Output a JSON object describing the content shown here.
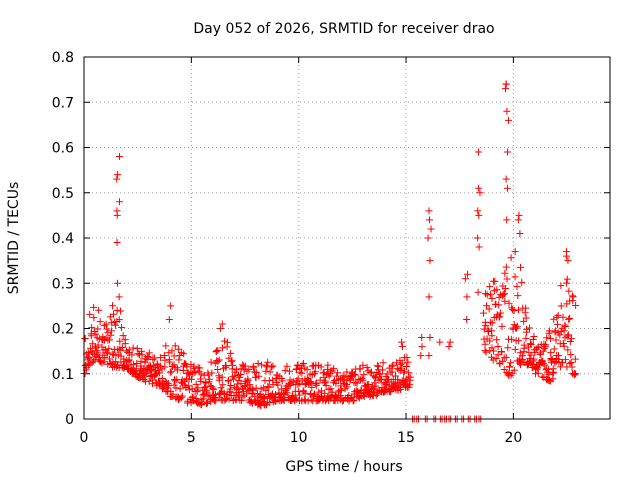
{
  "chart_data": {
    "type": "scatter",
    "title": "Day 052 of 2026, SRMTID for receiver drao",
    "xlabel": "GPS time / hours",
    "ylabel": "SRMTID / TECUs",
    "xlim": [
      0,
      24.5
    ],
    "ylim": [
      0,
      0.8
    ],
    "x_ticks": [
      0,
      5,
      10,
      15,
      20
    ],
    "x_tick_labels": [
      "0",
      "5",
      "10",
      "15",
      "20"
    ],
    "y_ticks": [
      0,
      0.1,
      0.2,
      0.3,
      0.4,
      0.5,
      0.6,
      0.7,
      0.8
    ],
    "y_tick_labels": [
      "0",
      "0.1",
      "0.2",
      "0.3",
      "0.4",
      "0.5",
      "0.6",
      "0.7",
      "0.8"
    ],
    "grid": true,
    "marker": "+",
    "series": [
      {
        "name": "SRMTID",
        "color": "#ff0000",
        "envelope": {
          "x": [
            0.0,
            0.5,
            1.0,
            1.5,
            2.0,
            2.5,
            3.0,
            3.5,
            4.0,
            4.5,
            5.0,
            5.5,
            6.0,
            6.5,
            7.0,
            7.5,
            8.0,
            8.5,
            9.0,
            9.5,
            10.0,
            10.5,
            11.0,
            11.5,
            12.0,
            12.5,
            13.0,
            13.5,
            14.0,
            14.5,
            15.0,
            15.2
          ],
          "lo": [
            0.1,
            0.13,
            0.12,
            0.11,
            0.11,
            0.09,
            0.08,
            0.07,
            0.05,
            0.04,
            0.03,
            0.03,
            0.04,
            0.04,
            0.04,
            0.04,
            0.03,
            0.03,
            0.04,
            0.04,
            0.04,
            0.04,
            0.04,
            0.04,
            0.04,
            0.04,
            0.05,
            0.05,
            0.06,
            0.06,
            0.07,
            0.07
          ],
          "hi": [
            0.23,
            0.28,
            0.21,
            0.29,
            0.17,
            0.16,
            0.15,
            0.14,
            0.18,
            0.16,
            0.12,
            0.11,
            0.13,
            0.2,
            0.12,
            0.12,
            0.13,
            0.13,
            0.12,
            0.12,
            0.12,
            0.13,
            0.12,
            0.12,
            0.1,
            0.11,
            0.12,
            0.12,
            0.13,
            0.13,
            0.14,
            0.13
          ]
        },
        "envelope2": {
          "x": [
            18.6,
            19.0,
            19.4,
            19.8,
            20.2,
            20.6,
            21.0,
            21.4,
            21.8,
            22.2,
            22.6,
            22.9
          ],
          "lo": [
            0.15,
            0.13,
            0.12,
            0.09,
            0.12,
            0.12,
            0.1,
            0.09,
            0.08,
            0.12,
            0.11,
            0.09
          ],
          "hi": [
            0.26,
            0.33,
            0.3,
            0.38,
            0.44,
            0.22,
            0.18,
            0.17,
            0.22,
            0.3,
            0.33,
            0.27
          ]
        },
        "spikes": [
          {
            "x": 1.6,
            "values": [
              0.58,
              0.54,
              0.53,
              0.48,
              0.46,
              0.45,
              0.39,
              0.3,
              0.27
            ]
          },
          {
            "x": 4.0,
            "values": [
              0.25,
              0.22
            ]
          },
          {
            "x": 6.4,
            "values": [
              0.21,
              0.2
            ]
          },
          {
            "x": 14.8,
            "values": [
              0.17,
              0.16
            ]
          },
          {
            "x": 15.7,
            "values": [
              0.18,
              0.16,
              0.14
            ]
          },
          {
            "x": 16.1,
            "values": [
              0.46,
              0.44,
              0.42,
              0.4,
              0.35,
              0.27,
              0.18,
              0.14
            ]
          },
          {
            "x": 16.6,
            "values": [
              0.17
            ]
          },
          {
            "x": 17.0,
            "values": [
              0.17,
              0.16
            ]
          },
          {
            "x": 17.8,
            "values": [
              0.32,
              0.31,
              0.27,
              0.22
            ]
          },
          {
            "x": 18.4,
            "values": [
              0.59,
              0.51,
              0.5,
              0.46,
              0.45,
              0.4,
              0.38,
              0.28
            ]
          },
          {
            "x": 19.7,
            "values": [
              0.74,
              0.74,
              0.73,
              0.68,
              0.66,
              0.59,
              0.53,
              0.51,
              0.44
            ]
          },
          {
            "x": 20.3,
            "values": [
              0.45,
              0.44,
              0.41
            ]
          },
          {
            "x": 22.5,
            "values": [
              0.37,
              0.36,
              0.35
            ]
          }
        ],
        "zero_values_x": [
          15.3,
          15.5,
          15.9,
          16.3,
          16.6,
          16.8,
          17.0,
          17.3,
          17.6,
          17.9,
          18.2,
          18.4
        ]
      }
    ]
  }
}
